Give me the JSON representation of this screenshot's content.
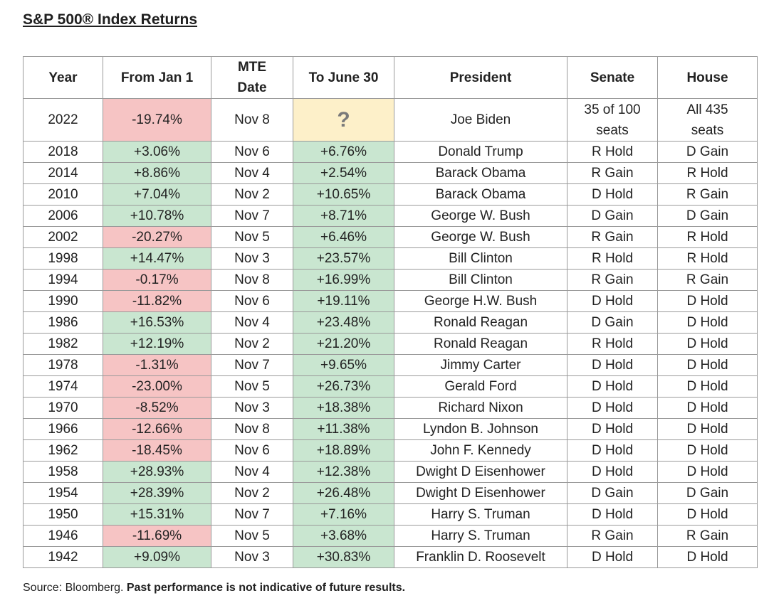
{
  "title": "S&P 500® Index Returns",
  "table": {
    "header": [
      "Year",
      "From Jan 1",
      "MTE\nDate",
      "To June 30",
      "President",
      "Senate",
      "House"
    ],
    "rows": [
      [
        "2022",
        "-19.74%",
        "Nov 8",
        "?",
        "Joe Biden",
        "35 of 100\nseats",
        "All 435\nseats"
      ],
      [
        "2018",
        "+3.06%",
        "Nov 6",
        "+6.76%",
        "Donald Trump",
        "R Hold",
        "D Gain"
      ],
      [
        "2014",
        "+8.86%",
        "Nov 4",
        "+2.54%",
        "Barack Obama",
        "R Gain",
        "R Hold"
      ],
      [
        "2010",
        "+7.04%",
        "Nov 2",
        "+10.65%",
        "Barack Obama",
        "D Hold",
        "R Gain"
      ],
      [
        "2006",
        "+10.78%",
        "Nov 7",
        "+8.71%",
        "George W. Bush",
        "D Gain",
        "D Gain"
      ],
      [
        "2002",
        "-20.27%",
        "Nov 5",
        "+6.46%",
        "George W. Bush",
        "R Gain",
        "R Hold"
      ],
      [
        "1998",
        "+14.47%",
        "Nov 3",
        "+23.57%",
        "Bill Clinton",
        "R Hold",
        "R Hold"
      ],
      [
        "1994",
        "-0.17%",
        "Nov 8",
        "+16.99%",
        "Bill Clinton",
        "R Gain",
        "R Gain"
      ],
      [
        "1990",
        "-11.82%",
        "Nov 6",
        "+19.11%",
        "George H.W. Bush",
        "D Hold",
        "D Hold"
      ],
      [
        "1986",
        "+16.53%",
        "Nov 4",
        "+23.48%",
        "Ronald Reagan",
        "D Gain",
        "D Hold"
      ],
      [
        "1982",
        "+12.19%",
        "Nov 2",
        "+21.20%",
        "Ronald Reagan",
        "R Hold",
        "D Hold"
      ],
      [
        "1978",
        "-1.31%",
        "Nov 7",
        "+9.65%",
        "Jimmy Carter",
        "D Hold",
        "D Hold"
      ],
      [
        "1974",
        "-23.00%",
        "Nov 5",
        "+26.73%",
        "Gerald Ford",
        "D Hold",
        "D Hold"
      ],
      [
        "1970",
        "-8.52%",
        "Nov 3",
        "+18.38%",
        "Richard Nixon",
        "D Hold",
        "D Hold"
      ],
      [
        "1966",
        "-12.66%",
        "Nov 8",
        "+11.38%",
        "Lyndon B. Johnson",
        "D Hold",
        "D Hold"
      ],
      [
        "1962",
        "-18.45%",
        "Nov 6",
        "+18.89%",
        "John F. Kennedy",
        "D Hold",
        "D Hold"
      ],
      [
        "1958",
        "+28.93%",
        "Nov 4",
        "+12.38%",
        "Dwight D Eisenhower",
        "D Hold",
        "D Hold"
      ],
      [
        "1954",
        "+28.39%",
        "Nov 2",
        "+26.48%",
        "Dwight D Eisenhower",
        "D Gain",
        "D Gain"
      ],
      [
        "1950",
        "+15.31%",
        "Nov 7",
        "+7.16%",
        "Harry S. Truman",
        "D Hold",
        "D Hold"
      ],
      [
        "1946",
        "-11.69%",
        "Nov 5",
        "+3.68%",
        "Harry S. Truman",
        "R Gain",
        "R Gain"
      ],
      [
        "1942",
        "+9.09%",
        "Nov 3",
        "+30.83%",
        "Franklin D. Roosevelt",
        "D Hold",
        "D Hold"
      ]
    ]
  },
  "source": {
    "label": "Source: Bloomberg.",
    "note": "Past performance is not indicative of future results."
  }
}
